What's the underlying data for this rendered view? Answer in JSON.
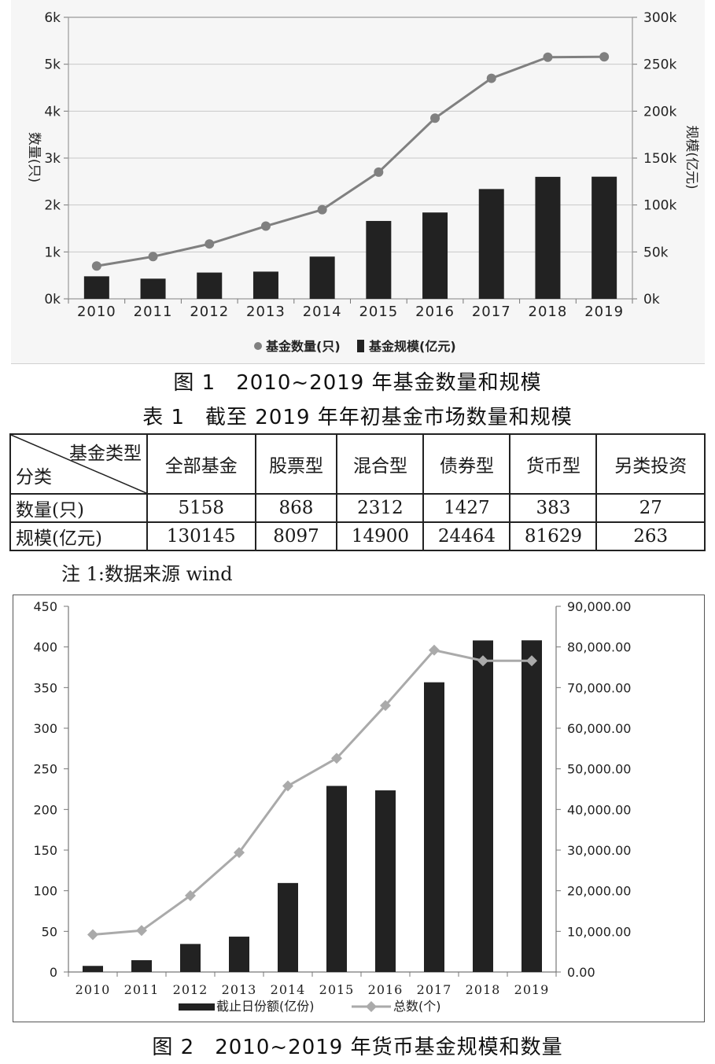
{
  "chart_data": [
    {
      "type": "bar+line",
      "figure": "chart1",
      "categories": [
        "2010",
        "2011",
        "2012",
        "2013",
        "2014",
        "2015",
        "2016",
        "2017",
        "2018",
        "2019"
      ],
      "series": [
        {
          "name": "基金数量(只)",
          "type": "line",
          "axis": "left",
          "values": [
            700,
            900,
            1170,
            1550,
            1900,
            2700,
            3850,
            4700,
            5150,
            5158
          ],
          "color": "#808080"
        },
        {
          "name": "基金规模(亿元)",
          "type": "bar",
          "axis": "right",
          "values": [
            24000,
            21500,
            28000,
            29000,
            45000,
            83000,
            92000,
            117000,
            130000,
            130145
          ],
          "color": "#222222"
        }
      ],
      "ylabel_left": "数量(只)",
      "ylabel_right": "规模(亿元)",
      "ylim_left": [
        0,
        6000
      ],
      "ylim_right": [
        0,
        300000
      ],
      "yticks_left": [
        "0k",
        "1k",
        "2k",
        "3k",
        "4k",
        "5k",
        "6k"
      ],
      "yticks_right": [
        "0k",
        "50k",
        "100k",
        "150k",
        "200k",
        "250k",
        "300k"
      ],
      "legend_position": "bottom"
    },
    {
      "type": "bar+line",
      "figure": "chart2",
      "categories": [
        "2010",
        "2011",
        "2012",
        "2013",
        "2014",
        "2015",
        "2016",
        "2017",
        "2018",
        "2019"
      ],
      "series": [
        {
          "name": "截止日份额(亿份)",
          "type": "bar",
          "axis": "right",
          "values": [
            1500,
            2900,
            6900,
            8700,
            21900,
            45800,
            44700,
            71300,
            81600,
            81629
          ],
          "color": "#222222"
        },
        {
          "name": "总数(个)",
          "type": "line",
          "axis": "left",
          "values": [
            46,
            51,
            94,
            147,
            229,
            263,
            328,
            396,
            383,
            383
          ],
          "color": "#aaaaaa"
        }
      ],
      "ylim_left": [
        0,
        450
      ],
      "ylim_right": [
        0,
        90000
      ],
      "yticks_left": [
        "0",
        "50",
        "100",
        "150",
        "200",
        "250",
        "300",
        "350",
        "400",
        "450"
      ],
      "yticks_right": [
        "0.00",
        "10,000.00",
        "20,000.00",
        "30,000.00",
        "40,000.00",
        "50,000.00",
        "60,000.00",
        "70,000.00",
        "80,000.00",
        "90,000.00"
      ],
      "legend_position": "bottom"
    }
  ],
  "fig1_caption": {
    "label": "图 1",
    "text": "2010~2019 年基金数量和规模"
  },
  "table1": {
    "title_label": "表 1",
    "title_text": "截至 2019 年年初基金市场数量和规模",
    "corner_top": "基金类型",
    "corner_bottom": "分类",
    "columns": [
      "全部基金",
      "股票型",
      "混合型",
      "债券型",
      "货币型",
      "另类投资"
    ],
    "rows": [
      {
        "label": "数量(只)",
        "values": [
          "5158",
          "868",
          "2312",
          "1427",
          "383",
          "27"
        ]
      },
      {
        "label": "规模(亿元)",
        "values": [
          "130145",
          "8097",
          "14900",
          "24464",
          "81629",
          "263"
        ]
      }
    ]
  },
  "note": "注 1:数据来源 wind",
  "fig2_caption": {
    "label": "图 2",
    "text": "2010~2019 年货币基金规模和数量"
  }
}
